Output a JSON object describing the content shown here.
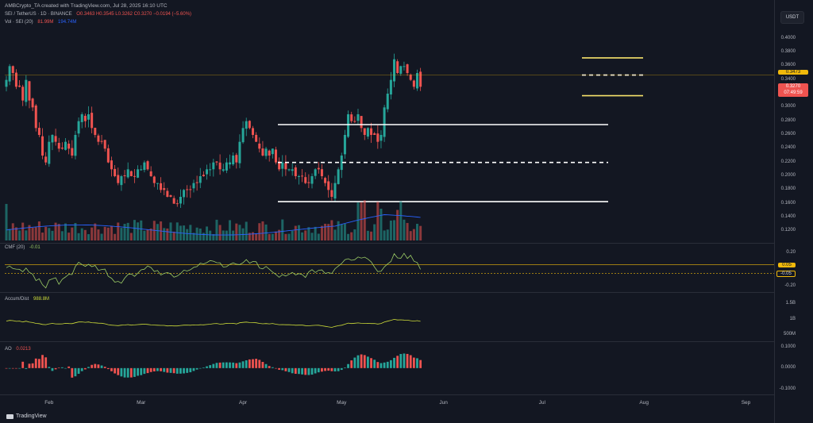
{
  "header": {
    "created_line": "AMBCrypto_TA created with TradingView.com, Jul 28, 2025 16:10 UTC",
    "symbol_line": "SEI / TetherUS · 1D · BINANCE",
    "ohlc": "O0.3463 H0.3545 L0.3262 C0.3270 −0.0194 (−5.60%)",
    "volume_label": "Vol · SEI (20)",
    "volume_value": "81.99M",
    "volume_ma": "194.74M"
  },
  "currency_button": "USDT",
  "price_tags": {
    "level": "0.3473",
    "last": "0.3270",
    "countdown": "07:49:59"
  },
  "panes": {
    "cmf": {
      "label": "CMF (20)",
      "value": "-0.01",
      "ticks": [
        "0.20",
        "0.05",
        "-0.05",
        "-0.20"
      ]
    },
    "accum": {
      "label": "Accum/Dist",
      "value": "988.8M",
      "ticks": [
        "1.5B",
        "1B",
        "500M"
      ]
    },
    "ao": {
      "label": "AO",
      "value": "0.0213",
      "ticks": [
        "0.1000",
        "0.0000",
        "-0.1000"
      ]
    }
  },
  "brand": "TradingView",
  "colors": {
    "up": "#26a69a",
    "down": "#ef5350",
    "bg": "#131722",
    "level_yellow": "#f7e36b",
    "ma_blue": "#2962ff"
  },
  "chart_data": [
    {
      "type": "line",
      "subtype": "candlestick price chart (SEI/USDT, 1D)",
      "yaxis_ticks": [
        "0.4000",
        "0.3800",
        "0.3600",
        "0.3400",
        "0.3200",
        "0.3000",
        "0.2800",
        "0.2600",
        "0.2400",
        "0.2200",
        "0.2000",
        "0.1800",
        "0.1600",
        "0.1400",
        "0.1200"
      ],
      "ylim": [
        0.11,
        0.41
      ],
      "x_ticks": [
        "Feb",
        "Mar",
        "Apr",
        "May",
        "Jun",
        "Jul",
        "Aug",
        "Sep"
      ],
      "approx_close_series_start_jan19": [
        0.34,
        0.36,
        0.35,
        0.33,
        0.33,
        0.31,
        0.34,
        0.31,
        0.3,
        0.27,
        0.26,
        0.23,
        0.22,
        0.25,
        0.26,
        0.25,
        0.24,
        0.24,
        0.25,
        0.24,
        0.23,
        0.26,
        0.28,
        0.29,
        0.28,
        0.29,
        0.27,
        0.26,
        0.25,
        0.25,
        0.24,
        0.22,
        0.21,
        0.2,
        0.19,
        0.2,
        0.2,
        0.21,
        0.2,
        0.2,
        0.21,
        0.21,
        0.22,
        0.21,
        0.2,
        0.19,
        0.19,
        0.18,
        0.18,
        0.17,
        0.17,
        0.16,
        0.16,
        0.17,
        0.18,
        0.18,
        0.18,
        0.19,
        0.19,
        0.2,
        0.2,
        0.21,
        0.21,
        0.22,
        0.22,
        0.21,
        0.21,
        0.22,
        0.22,
        0.23,
        0.22,
        0.25,
        0.27,
        0.28,
        0.27,
        0.26,
        0.25,
        0.24,
        0.23,
        0.24,
        0.23,
        0.24,
        0.22,
        0.21,
        0.22,
        0.21,
        0.21,
        0.21,
        0.2,
        0.2,
        0.2,
        0.19,
        0.19,
        0.2,
        0.21,
        0.21,
        0.2,
        0.19,
        0.18,
        0.17,
        0.19,
        0.21,
        0.23,
        0.26,
        0.29,
        0.28,
        0.28,
        0.29,
        0.27,
        0.26,
        0.27,
        0.26,
        0.26,
        0.25,
        0.26,
        0.3,
        0.32,
        0.34,
        0.37,
        0.35,
        0.36,
        0.36,
        0.35,
        0.34,
        0.33,
        0.35,
        0.33
      ],
      "horizontal_levels": [
        {
          "value": 0.275,
          "style": "solid",
          "color": "white"
        },
        {
          "value": 0.22,
          "style": "dashed",
          "color": "white"
        },
        {
          "value": 0.163,
          "style": "solid",
          "color": "white"
        },
        {
          "value": 0.372,
          "style": "solid",
          "color": "yellow"
        },
        {
          "value": 0.347,
          "style": "dashed",
          "color": "white"
        },
        {
          "value": 0.317,
          "style": "solid",
          "color": "yellow"
        }
      ],
      "grid": false
    },
    {
      "type": "bar",
      "name": "Volume",
      "ma_line_value_label": "194.74M"
    },
    {
      "type": "line",
      "name": "CMF (20)",
      "ylim": [
        -0.25,
        0.25
      ],
      "reference_lines": [
        0.05,
        -0.05
      ]
    },
    {
      "type": "line",
      "name": "Accum/Dist",
      "ylim": [
        0.3,
        1.8
      ],
      "unit": "B"
    },
    {
      "type": "bar",
      "name": "AO",
      "ylim": [
        -0.13,
        0.12
      ]
    }
  ]
}
